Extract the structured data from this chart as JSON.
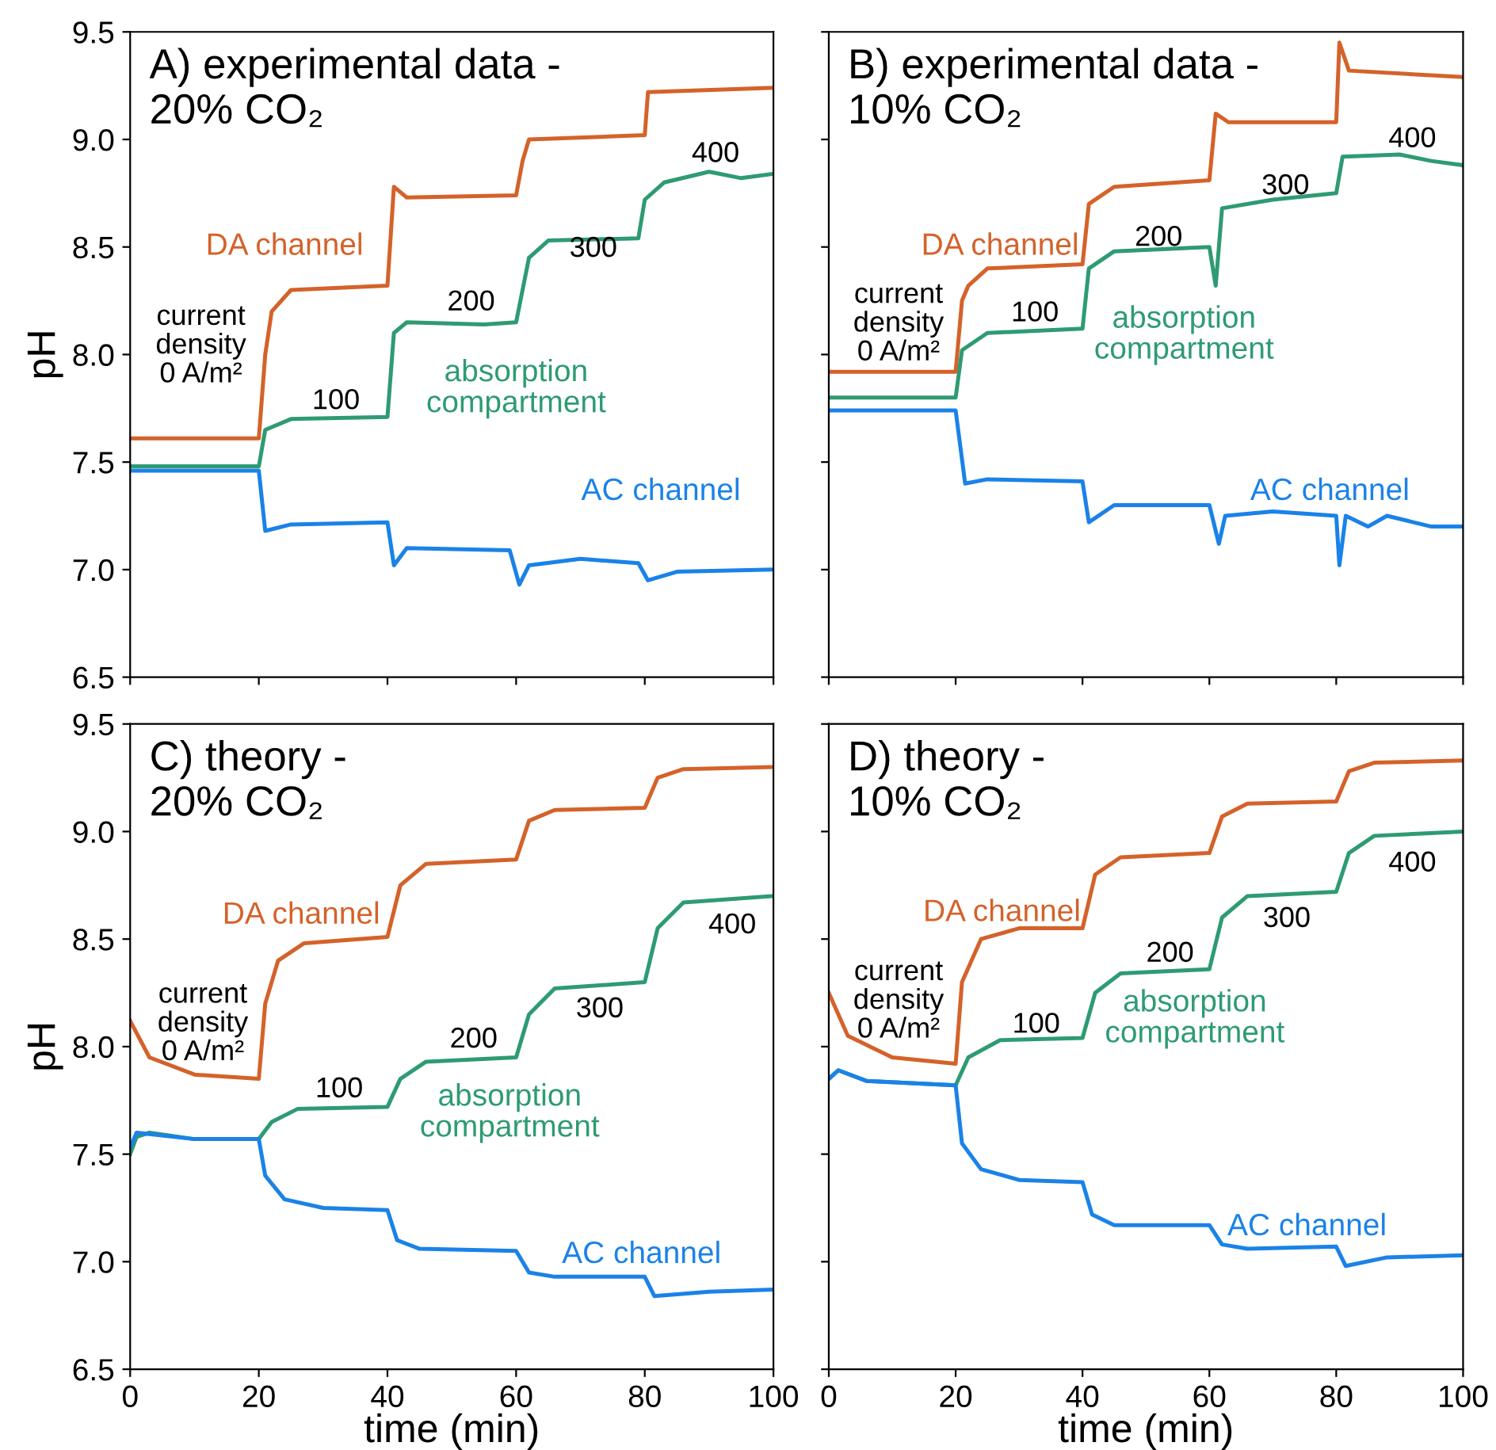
{
  "chart_data": [
    {
      "type": "line",
      "title": "A) experimental data -\n20% CO₂",
      "ylabel": "pH",
      "xlim": [
        0,
        100
      ],
      "ylim": [
        6.5,
        9.5
      ],
      "xticks": [
        0,
        20,
        40,
        60,
        80,
        100
      ],
      "yticks": [
        6.5,
        {
          "value": 7,
          "label": "7.0"
        },
        7.5,
        {
          "value": 8,
          "label": "8.0"
        },
        8.5,
        {
          "value": 9,
          "label": "9.0"
        },
        9.5
      ],
      "tick_labels": "y",
      "grid": false,
      "legend": false,
      "line_style": "solid",
      "marker": "none",
      "series": [
        {
          "name": "DA channel",
          "color": "#d4622a",
          "x": [
            0,
            20,
            21,
            22,
            25,
            40,
            41,
            43,
            60,
            61,
            62,
            80,
            80.5,
            100
          ],
          "values": [
            7.61,
            7.61,
            8.0,
            8.2,
            8.3,
            8.32,
            8.78,
            8.73,
            8.74,
            8.9,
            9.0,
            9.02,
            9.22,
            9.24
          ]
        },
        {
          "name": "absorption\ncompartment",
          "color": "#2e9b72",
          "x": [
            0,
            20,
            21,
            25,
            40,
            41,
            43,
            55,
            60,
            62,
            65,
            79,
            80,
            83,
            90,
            95,
            100
          ],
          "values": [
            7.48,
            7.48,
            7.65,
            7.7,
            7.71,
            8.1,
            8.15,
            8.14,
            8.15,
            8.45,
            8.53,
            8.54,
            8.72,
            8.8,
            8.85,
            8.82,
            8.84
          ]
        },
        {
          "name": "AC channel",
          "color": "#1a82e8",
          "x": [
            0,
            20,
            21,
            25,
            40,
            41,
            43,
            59,
            60.5,
            62,
            70,
            79,
            80.5,
            85,
            100
          ],
          "values": [
            7.46,
            7.46,
            7.18,
            7.21,
            7.22,
            7.02,
            7.1,
            7.09,
            6.93,
            7.02,
            7.05,
            7.03,
            6.95,
            6.99,
            7.0
          ]
        }
      ],
      "annotations": [
        "current\ndensity\n0 A/m²",
        "100",
        "200",
        "300",
        "400"
      ]
    },
    {
      "type": "line",
      "title": "B) experimental data -\n10% CO₂",
      "xlim": [
        0,
        100
      ],
      "ylim": [
        6.5,
        9.5
      ],
      "xticks": [
        0,
        20,
        40,
        60,
        80,
        100
      ],
      "yticks": [
        6.5,
        7,
        7.5,
        8,
        8.5,
        9,
        9.5
      ],
      "tick_labels": false,
      "grid": false,
      "legend": false,
      "line_style": "solid",
      "marker": "none",
      "series": [
        {
          "name": "DA channel",
          "color": "#d4622a",
          "x": [
            0,
            20,
            21,
            22,
            25,
            40,
            41,
            45,
            60,
            61,
            63,
            80,
            80.5,
            82,
            100
          ],
          "values": [
            7.92,
            7.92,
            8.25,
            8.32,
            8.4,
            8.42,
            8.7,
            8.78,
            8.81,
            9.12,
            9.08,
            9.08,
            9.45,
            9.32,
            9.29
          ]
        },
        {
          "name": "absorption\ncompartment",
          "color": "#2e9b72",
          "x": [
            0,
            20,
            21,
            25,
            40,
            41,
            45,
            60,
            61,
            62,
            70,
            80,
            81,
            90,
            95,
            100
          ],
          "values": [
            7.8,
            7.8,
            8.02,
            8.1,
            8.12,
            8.4,
            8.48,
            8.5,
            8.32,
            8.68,
            8.72,
            8.75,
            8.92,
            8.93,
            8.9,
            8.88
          ]
        },
        {
          "name": "AC channel",
          "color": "#1a82e8",
          "x": [
            0,
            20,
            21.5,
            25,
            40,
            41,
            45,
            60,
            61.5,
            62.5,
            70,
            80,
            80.5,
            81.5,
            85,
            88,
            95,
            100
          ],
          "values": [
            7.74,
            7.74,
            7.4,
            7.42,
            7.41,
            7.22,
            7.3,
            7.3,
            7.12,
            7.25,
            7.27,
            7.25,
            7.02,
            7.25,
            7.2,
            7.25,
            7.2,
            7.2
          ]
        }
      ],
      "annotations": [
        "current\ndensity\n0 A/m²",
        "100",
        "200",
        "300",
        "400"
      ]
    },
    {
      "type": "line",
      "title": "C) theory -\n20% CO₂",
      "xlabel": "time (min)",
      "ylabel": "pH",
      "xlim": [
        0,
        100
      ],
      "ylim": [
        6.5,
        9.5
      ],
      "xticks": [
        0,
        20,
        40,
        60,
        80,
        100
      ],
      "yticks": [
        6.5,
        {
          "value": 7,
          "label": "7.0"
        },
        7.5,
        {
          "value": 8,
          "label": "8.0"
        },
        8.5,
        {
          "value": 9,
          "label": "9.0"
        },
        9.5
      ],
      "grid": false,
      "legend": false,
      "line_style": "solid",
      "marker": "none",
      "series": [
        {
          "name": "DA channel",
          "color": "#d4622a",
          "x": [
            0,
            3,
            10,
            20,
            21,
            23,
            27,
            40,
            42,
            46,
            60,
            62,
            66,
            80,
            82,
            86,
            100
          ],
          "values": [
            8.12,
            7.95,
            7.87,
            7.85,
            8.2,
            8.4,
            8.48,
            8.51,
            8.75,
            8.85,
            8.87,
            9.05,
            9.1,
            9.11,
            9.25,
            9.29,
            9.3
          ]
        },
        {
          "name": "absorption\ncompartment",
          "color": "#2e9b72",
          "x": [
            0,
            1,
            3,
            10,
            20,
            22,
            26,
            40,
            42,
            46,
            60,
            62,
            66,
            80,
            82,
            86,
            100
          ],
          "values": [
            7.5,
            7.58,
            7.6,
            7.57,
            7.57,
            7.65,
            7.71,
            7.72,
            7.85,
            7.93,
            7.95,
            8.15,
            8.27,
            8.3,
            8.55,
            8.67,
            8.7
          ]
        },
        {
          "name": "AC channel",
          "color": "#1a82e8",
          "x": [
            0,
            1,
            10,
            20,
            21,
            24,
            30,
            40,
            41.5,
            45,
            60,
            62,
            66,
            80,
            81.5,
            90,
            100
          ],
          "values": [
            7.53,
            7.6,
            7.57,
            7.57,
            7.4,
            7.29,
            7.25,
            7.24,
            7.1,
            7.06,
            7.05,
            6.95,
            6.93,
            6.93,
            6.84,
            6.86,
            6.87
          ]
        }
      ],
      "annotations": [
        "current\ndensity\n0 A/m²",
        "100",
        "200",
        "300",
        "400"
      ]
    },
    {
      "type": "line",
      "title": "D) theory -\n10% CO₂",
      "xlabel": "time (min)",
      "xlim": [
        0,
        100
      ],
      "ylim": [
        6.5,
        9.5
      ],
      "xticks": [
        0,
        20,
        40,
        60,
        80,
        100
      ],
      "yticks": [
        6.5,
        7,
        7.5,
        8,
        8.5,
        9,
        9.5
      ],
      "tick_labels": "x",
      "grid": false,
      "legend": false,
      "line_style": "solid",
      "marker": "none",
      "series": [
        {
          "name": "DA channel",
          "color": "#d4622a",
          "x": [
            0,
            3,
            10,
            20,
            21,
            24,
            30,
            40,
            42,
            46,
            60,
            62,
            66,
            80,
            82,
            86,
            100
          ],
          "values": [
            8.25,
            8.05,
            7.95,
            7.92,
            8.3,
            8.5,
            8.55,
            8.55,
            8.8,
            8.88,
            8.9,
            9.07,
            9.13,
            9.14,
            9.28,
            9.32,
            9.33
          ]
        },
        {
          "name": "absorption\ncompartment",
          "color": "#2e9b72",
          "x": [
            0,
            1.5,
            6,
            20,
            22,
            27,
            40,
            42,
            46,
            60,
            62,
            66,
            80,
            82,
            86,
            100
          ],
          "values": [
            7.85,
            7.89,
            7.84,
            7.82,
            7.95,
            8.03,
            8.04,
            8.25,
            8.34,
            8.36,
            8.6,
            8.7,
            8.72,
            8.9,
            8.98,
            9.0
          ]
        },
        {
          "name": "AC channel",
          "color": "#1a82e8",
          "x": [
            0,
            1.5,
            6,
            20,
            21,
            24,
            30,
            40,
            41.5,
            45,
            60,
            62,
            66,
            80,
            81.5,
            88,
            100
          ],
          "values": [
            7.85,
            7.89,
            7.84,
            7.82,
            7.55,
            7.43,
            7.38,
            7.37,
            7.22,
            7.17,
            7.17,
            7.08,
            7.06,
            7.07,
            6.98,
            7.02,
            7.03
          ]
        }
      ],
      "annotations": [
        "current\ndensity\n0 A/m²",
        "100",
        "200",
        "300",
        "400"
      ]
    }
  ]
}
